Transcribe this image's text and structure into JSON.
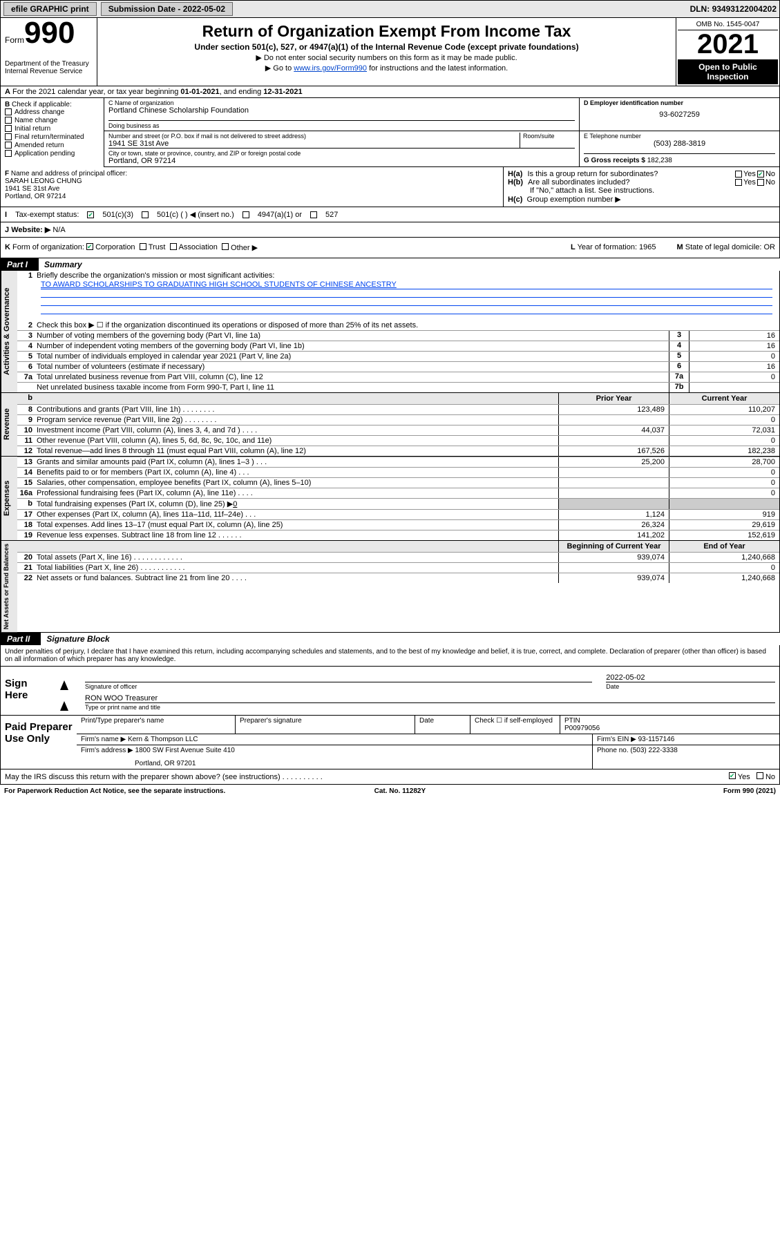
{
  "topbar": {
    "efile": "efile GRAPHIC print",
    "submission_label": "Submission Date - ",
    "submission_date": "2022-05-02",
    "dln_label": "DLN: ",
    "dln": "93493122004202"
  },
  "header": {
    "form_word": "Form",
    "form_num": "990",
    "dept": "Department of the Treasury",
    "irs": "Internal Revenue Service",
    "title": "Return of Organization Exempt From Income Tax",
    "subtitle": "Under section 501(c), 527, or 4947(a)(1) of the Internal Revenue Code (except private foundations)",
    "note1": "Do not enter social security numbers on this form as it may be made public.",
    "note2_pre": "Go to ",
    "note2_link": "www.irs.gov/Form990",
    "note2_post": " for instructions and the latest information.",
    "omb": "OMB No. 1545-0047",
    "year": "2021",
    "open": "Open to Public Inspection"
  },
  "section_a": {
    "text_pre": "For the 2021 calendar year, or tax year beginning ",
    "begin": "01-01-2021",
    "mid": ", and ending ",
    "end": "12-31-2021"
  },
  "col_b": {
    "label": "Check if applicable:",
    "opts": [
      "Address change",
      "Name change",
      "Initial return",
      "Final return/terminated",
      "Amended return",
      "Application pending"
    ],
    "prefix": "B"
  },
  "org": {
    "c_label": "C Name of organization",
    "name": "Portland Chinese Scholarship Foundation",
    "dba_label": "Doing business as",
    "addr_label": "Number and street (or P.O. box if mail is not delivered to street address)",
    "room_label": "Room/suite",
    "addr": "1941 SE 31st Ave",
    "city_label": "City or town, state or province, country, and ZIP or foreign postal code",
    "city": "Portland, OR  97214",
    "d_label": "D Employer identification number",
    "ein": "93-6027259",
    "e_label": "E Telephone number",
    "phone": "(503) 288-3819",
    "g_label": "G Gross receipts $ ",
    "gross": "182,238"
  },
  "fh": {
    "f_label": "Name and address of principal officer:",
    "officer": "SARAH LEONG CHUNG",
    "officer_addr1": "1941 SE 31st Ave",
    "officer_addr2": "Portland, OR  97214",
    "ha": "Is this a group return for subordinates?",
    "hb": "Are all subordinates included?",
    "hb_note": "If \"No,\" attach a list. See instructions.",
    "hc": "Group exemption number ▶",
    "ha_prefix": "H(a)",
    "hb_prefix": "H(b)",
    "hc_prefix": "H(c)",
    "f_prefix": "F",
    "yes": "Yes",
    "no": "No"
  },
  "i": {
    "prefix": "I",
    "label": "Tax-exempt status:",
    "o1": "501(c)(3)",
    "o2": "501(c) (   ) ◀ (insert no.)",
    "o3": "4947(a)(1) or",
    "o4": "527"
  },
  "j": {
    "prefix": "J",
    "label": "Website: ▶",
    "val": "N/A"
  },
  "k": {
    "prefix": "K",
    "label": "Form of organization:",
    "corp": "Corporation",
    "trust": "Trust",
    "assoc": "Association",
    "other": "Other ▶",
    "l": "Year of formation: 1965",
    "m": "State of legal domicile: OR",
    "l_prefix": "L",
    "m_prefix": "M"
  },
  "part1": {
    "tab": "Part I",
    "title": "Summary"
  },
  "gov": {
    "vtab": "Activities & Governance",
    "l1": "Briefly describe the organization's mission or most significant activities:",
    "mission": "TO AWARD SCHOLARSHIPS TO GRADUATING HIGH SCHOOL STUDENTS OF CHINESE ANCESTRY",
    "l2": "Check this box ▶ ☐  if the organization discontinued its operations or disposed of more than 25% of its net assets.",
    "lines": [
      {
        "n": "3",
        "d": "Number of voting members of the governing body (Part VI, line 1a)",
        "b": "3",
        "v": "16"
      },
      {
        "n": "4",
        "d": "Number of independent voting members of the governing body (Part VI, line 1b)",
        "b": "4",
        "v": "16"
      },
      {
        "n": "5",
        "d": "Total number of individuals employed in calendar year 2021 (Part V, line 2a)",
        "b": "5",
        "v": "0"
      },
      {
        "n": "6",
        "d": "Total number of volunteers (estimate if necessary)",
        "b": "6",
        "v": "16"
      },
      {
        "n": "7a",
        "d": "Total unrelated business revenue from Part VIII, column (C), line 12",
        "b": "7a",
        "v": "0"
      },
      {
        "n": "",
        "d": "Net unrelated business taxable income from Form 990-T, Part I, line 11",
        "b": "7b",
        "v": ""
      }
    ]
  },
  "yr_header": {
    "b": "b",
    "prior": "Prior Year",
    "curr": "Current Year"
  },
  "revenue": {
    "vtab": "Revenue",
    "rows": [
      {
        "n": "8",
        "d": "Contributions and grants (Part VIII, line 1h)  .  .  .  .  .  .  .  .",
        "p": "123,489",
        "c": "110,207"
      },
      {
        "n": "9",
        "d": "Program service revenue (Part VIII, line 2g)  .  .  .  .  .  .  .  .",
        "p": "",
        "c": "0"
      },
      {
        "n": "10",
        "d": "Investment income (Part VIII, column (A), lines 3, 4, and 7d )  .  .  .  .",
        "p": "44,037",
        "c": "72,031"
      },
      {
        "n": "11",
        "d": "Other revenue (Part VIII, column (A), lines 5, 6d, 8c, 9c, 10c, and 11e)",
        "p": "",
        "c": "0"
      },
      {
        "n": "12",
        "d": "Total revenue—add lines 8 through 11 (must equal Part VIII, column (A), line 12)",
        "p": "167,526",
        "c": "182,238"
      }
    ]
  },
  "expenses": {
    "vtab": "Expenses",
    "rows": [
      {
        "n": "13",
        "d": "Grants and similar amounts paid (Part IX, column (A), lines 1–3 )  .  .  .",
        "p": "25,200",
        "c": "28,700"
      },
      {
        "n": "14",
        "d": "Benefits paid to or for members (Part IX, column (A), line 4)  .  .  .",
        "p": "",
        "c": "0"
      },
      {
        "n": "15",
        "d": "Salaries, other compensation, employee benefits (Part IX, column (A), lines 5–10)",
        "p": "",
        "c": "0"
      },
      {
        "n": "16a",
        "d": "Professional fundraising fees (Part IX, column (A), line 11e)  .  .  .  .",
        "p": "",
        "c": "0"
      }
    ],
    "b_line": {
      "n": "b",
      "d": "Total fundraising expenses (Part IX, column (D), line 25) ▶",
      "v": "0"
    },
    "rows2": [
      {
        "n": "17",
        "d": "Other expenses (Part IX, column (A), lines 11a–11d, 11f–24e)  .  .  .",
        "p": "1,124",
        "c": "919"
      },
      {
        "n": "18",
        "d": "Total expenses. Add lines 13–17 (must equal Part IX, column (A), line 25)",
        "p": "26,324",
        "c": "29,619"
      },
      {
        "n": "19",
        "d": "Revenue less expenses. Subtract line 18 from line 12  .  .  .  .  .  .",
        "p": "141,202",
        "c": "152,619"
      }
    ]
  },
  "netassets": {
    "vtab": "Net Assets or Fund Balances",
    "header": {
      "prior": "Beginning of Current Year",
      "curr": "End of Year"
    },
    "rows": [
      {
        "n": "20",
        "d": "Total assets (Part X, line 16)  .  .  .  .  .  .  .  .  .  .  .  .",
        "p": "939,074",
        "c": "1,240,668"
      },
      {
        "n": "21",
        "d": "Total liabilities (Part X, line 26)  .  .  .  .  .  .  .  .  .  .  .",
        "p": "",
        "c": "0"
      },
      {
        "n": "22",
        "d": "Net assets or fund balances. Subtract line 21 from line 20  .  .  .  .",
        "p": "939,074",
        "c": "1,240,668"
      }
    ]
  },
  "part2": {
    "tab": "Part II",
    "title": "Signature Block"
  },
  "penalty": "Under penalties of perjury, I declare that I have examined this return, including accompanying schedules and statements, and to the best of my knowledge and belief, it is true, correct, and complete. Declaration of preparer (other than officer) is based on all information of which preparer has any knowledge.",
  "sign": {
    "left": "Sign Here",
    "sig_label": "Signature of officer",
    "date_label": "Date",
    "date": "2022-05-02",
    "name": "RON WOO Treasurer",
    "name_label": "Type or print name and title"
  },
  "paid": {
    "left": "Paid Preparer Use Only",
    "h1": "Print/Type preparer's name",
    "h2": "Preparer's signature",
    "h3": "Date",
    "h4_pre": "Check ☐ if self-employed",
    "h5": "PTIN",
    "ptin": "P00979056",
    "firm_label": "Firm's name   ▶",
    "firm": "Kern & Thompson LLC",
    "ein_label": "Firm's EIN ▶",
    "ein": "93-1157146",
    "addr_label": "Firm's address ▶",
    "addr1": "1800 SW First Avenue Suite 410",
    "addr2": "Portland, OR  97201",
    "phone_label": "Phone no.",
    "phone": "(503) 222-3338"
  },
  "footer": {
    "q": "May the IRS discuss this return with the preparer shown above? (see instructions)  .  .  .  .  .  .  .  .  .  .",
    "yes": "Yes",
    "no": "No"
  },
  "bottom": {
    "l": "For Paperwork Reduction Act Notice, see the separate instructions.",
    "c": "Cat. No. 11282Y",
    "r": "Form 990 (2021)"
  }
}
